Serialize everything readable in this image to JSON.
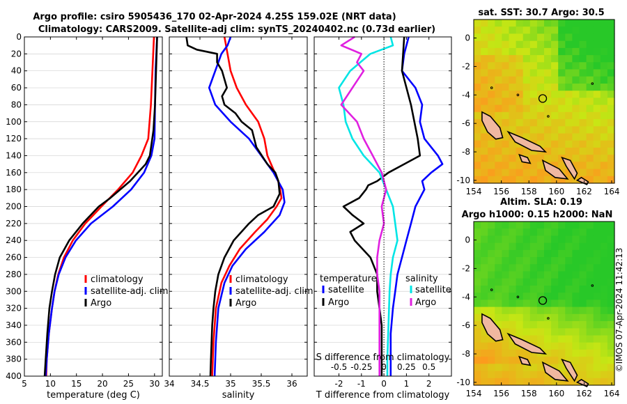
{
  "chart_data": {
    "type": "line",
    "title_line1": "Argo profile: csiro 5905436_170 02-Apr-2024 4.25S 159.02E (NRT data)",
    "title_line2": "Climatology: CARS2009. Satellite-adj clim: synTS_20240402.nc (0.73d earlier)",
    "watermark": "©IMOS 07-Apr-2024 11:42:13",
    "colors": {
      "red": "#ff0000",
      "blue": "#0000ff",
      "black": "#000000",
      "cyan": "#00e5e5",
      "magenta": "#e020e0"
    },
    "depth_ticks": [
      "0",
      "20",
      "40",
      "60",
      "80",
      "100",
      "120",
      "140",
      "160",
      "180",
      "200",
      "220",
      "240",
      "260",
      "280",
      "300",
      "320",
      "340",
      "360",
      "380",
      "400"
    ],
    "panels": [
      {
        "id": "temperature",
        "xlabel": "temperature (deg C)",
        "xlim": [
          5,
          31.5
        ],
        "ylim": [
          0,
          400
        ],
        "xticks": [
          5,
          10,
          15,
          20,
          25,
          30
        ],
        "xtick_labels": [
          "5",
          "10",
          "15",
          "20",
          "25",
          "30"
        ],
        "legend": [
          "climatology",
          "satellite-adj. clim",
          "Argo"
        ],
        "series": [
          {
            "name": "climatology",
            "color": "red",
            "depth": [
              0,
              40,
              80,
              120,
              140,
              160,
              180,
              200,
              220,
              240,
              260,
              280,
              300,
              320,
              350,
              380,
              400
            ],
            "values": [
              29.9,
              29.6,
              29.3,
              28.8,
              27.5,
              25.8,
              23,
              19.8,
              16.7,
              14.3,
              12.6,
              11.5,
              10.8,
              10.3,
              9.7,
              9.3,
              9.2
            ]
          },
          {
            "name": "satellite-adj. clim",
            "color": "blue",
            "depth": [
              0,
              40,
              80,
              120,
              140,
              160,
              180,
              200,
              220,
              240,
              260,
              280,
              300,
              320,
              350,
              380,
              400
            ],
            "values": [
              30.5,
              30.2,
              30.1,
              30,
              29.4,
              28,
              25.5,
              22,
              17.8,
              14.9,
              12.9,
              11.6,
              10.8,
              10.3,
              9.7,
              9.3,
              9.1
            ]
          },
          {
            "name": "Argo",
            "color": "black",
            "depth": [
              0,
              40,
              80,
              110,
              140,
              150,
              170,
              190,
              200,
              220,
              240,
              260,
              280,
              300,
              320,
              350,
              380,
              400
            ],
            "values": [
              30.5,
              30.3,
              30.1,
              29.8,
              29.1,
              28.3,
              25.3,
              21.5,
              19.3,
              16.2,
              13.6,
              11.8,
              10.9,
              10.3,
              9.8,
              9.4,
              9.1,
              8.9
            ]
          }
        ]
      },
      {
        "id": "salinity",
        "xlabel": "salinity",
        "xlim": [
          34,
          36.25
        ],
        "ylim": [
          0,
          400
        ],
        "xticks": [
          34,
          34.5,
          35,
          35.5,
          36
        ],
        "xtick_labels": [
          "34",
          "34.5",
          "35",
          "35.5",
          "36"
        ],
        "legend": [
          "climatology",
          "satellite-adj. clim",
          "Argo"
        ],
        "series": [
          {
            "name": "climatology",
            "color": "red",
            "depth": [
              0,
              20,
              40,
              60,
              80,
              100,
              120,
              140,
              160,
              175,
              190,
              200,
              215,
              230,
              250,
              270,
              290,
              320,
              360,
              400
            ],
            "values": [
              34.9,
              34.95,
              35.0,
              35.1,
              35.25,
              35.45,
              35.55,
              35.6,
              35.72,
              35.8,
              35.83,
              35.75,
              35.6,
              35.4,
              35.15,
              34.98,
              34.85,
              34.76,
              34.72,
              34.7
            ]
          },
          {
            "name": "satellite-adj. clim",
            "color": "blue",
            "depth": [
              0,
              10,
              20,
              40,
              60,
              80,
              100,
              120,
              140,
              160,
              180,
              195,
              210,
              230,
              250,
              270,
              290,
              320,
              360,
              400
            ],
            "values": [
              35.0,
              34.95,
              34.85,
              34.75,
              34.65,
              34.75,
              35.0,
              35.3,
              35.5,
              35.7,
              35.85,
              35.88,
              35.8,
              35.55,
              35.25,
              35.03,
              34.9,
              34.8,
              34.76,
              34.74
            ]
          },
          {
            "name": "Argo",
            "color": "black",
            "depth": [
              0,
              10,
              15,
              20,
              30,
              40,
              50,
              60,
              70,
              80,
              90,
              100,
              110,
              130,
              150,
              160,
              170,
              185,
              200,
              210,
              220,
              240,
              260,
              280,
              300,
              320,
              340,
              360,
              380,
              400
            ],
            "values": [
              34.28,
              34.3,
              34.45,
              34.78,
              34.78,
              34.86,
              34.9,
              34.94,
              34.86,
              34.9,
              35.08,
              35.18,
              35.35,
              35.42,
              35.6,
              35.73,
              35.78,
              35.8,
              35.7,
              35.45,
              35.3,
              35.05,
              34.9,
              34.8,
              34.75,
              34.72,
              34.7,
              34.69,
              34.68,
              34.67
            ]
          }
        ]
      },
      {
        "id": "differences",
        "xlabel": "T difference from climatology",
        "xlabel_top": "S difference from climatology",
        "xlim": [
          -3.1,
          3.0
        ],
        "ylim": [
          0,
          400
        ],
        "xticks": [
          -2,
          -1,
          0,
          1,
          2
        ],
        "xtick_labels": [
          "-2",
          "-1",
          "0",
          "1",
          "2"
        ],
        "s_ticks": [
          -2,
          -1,
          0,
          1,
          2
        ],
        "s_tick_labels": [
          "-0.5",
          "-0.25",
          "0",
          "0.25",
          "0.5"
        ],
        "legend_left_title": "temperature",
        "legend_right_title": "salinity",
        "legend_left": [
          "satellite",
          "Argo"
        ],
        "legend_right": [
          "satellite",
          "Argo"
        ],
        "series": [
          {
            "name": "T satellite",
            "color": "blue",
            "depth": [
              0,
              20,
              40,
              60,
              80,
              100,
              120,
              140,
              150,
              160,
              170,
              180,
              200,
              220,
              240,
              260,
              280,
              300,
              320,
              350,
              380,
              400
            ],
            "values": [
              1.1,
              0.9,
              0.8,
              1.4,
              1.7,
              1.6,
              1.8,
              2.4,
              2.6,
              2.1,
              1.7,
              1.8,
              1.4,
              1.2,
              1.0,
              0.8,
              0.6,
              0.5,
              0.4,
              0.3,
              0.3,
              0.3
            ]
          },
          {
            "name": "T Argo",
            "color": "black",
            "depth": [
              0,
              40,
              80,
              120,
              140,
              150,
              160,
              170,
              175,
              180,
              190,
              200,
              210,
              220,
              230,
              240,
              260,
              280,
              300,
              320,
              340,
              360,
              380,
              400
            ],
            "values": [
              0.9,
              0.8,
              1.2,
              1.5,
              1.6,
              0.9,
              0.2,
              -0.3,
              -0.7,
              -0.8,
              -1.1,
              -1.8,
              -1.4,
              -0.9,
              -1.5,
              -1.3,
              -0.6,
              -0.3,
              -0.3,
              -0.2,
              -0.1,
              -0.1,
              -0.1,
              -0.1
            ]
          },
          {
            "name": "S satellite",
            "color": "cyan",
            "depth": [
              0,
              10,
              20,
              40,
              60,
              80,
              100,
              120,
              140,
              160,
              180,
              200,
              220,
              240,
              260,
              280,
              300,
              340,
              380,
              400
            ],
            "values": [
              0.3,
              0.4,
              -0.6,
              -1.5,
              -2.0,
              -1.8,
              -1.7,
              -1.4,
              -0.9,
              -0.2,
              0.1,
              0.4,
              0.5,
              0.6,
              0.4,
              0.3,
              0.25,
              0.2,
              0.15,
              0.15
            ]
          },
          {
            "name": "S Argo",
            "color": "magenta",
            "depth": [
              0,
              10,
              20,
              30,
              40,
              60,
              80,
              100,
              120,
              140,
              160,
              180,
              200,
              220,
              240,
              260,
              280,
              300,
              340,
              380,
              400
            ],
            "values": [
              -1.3,
              -1.9,
              -1.0,
              -1.2,
              -0.9,
              -1.4,
              -1.9,
              -1.2,
              -0.9,
              -0.5,
              -0.1,
              0.1,
              -0.1,
              0.0,
              -0.2,
              -0.3,
              -0.3,
              -0.2,
              -0.2,
              -0.2,
              -0.2
            ]
          }
        ]
      }
    ],
    "maps": [
      {
        "id": "sst_map",
        "title1": "sat. SST: 30.7 Argo: 30.5",
        "xlim": [
          154,
          164.2
        ],
        "ylim": [
          -10.2,
          1.3
        ],
        "xticks": [
          154,
          156,
          158,
          160,
          162,
          164
        ],
        "xtick_labels": [
          "154",
          "156",
          "158",
          "160",
          "162",
          "164"
        ],
        "yticks": [
          0,
          -2,
          -4,
          -6,
          -8,
          -10
        ],
        "ytick_labels": [
          "0",
          "-2",
          "-4",
          "-6",
          "-8",
          "-10"
        ],
        "marker": [
          159,
          -4.25
        ]
      },
      {
        "id": "sla_map",
        "title1": "Altim. SLA: 0.19",
        "title2": "Argo h1000: 0.15 h2000: NaN",
        "xlim": [
          154,
          164.2
        ],
        "ylim": [
          -10.2,
          1.3
        ],
        "xticks": [
          154,
          156,
          158,
          160,
          162,
          164
        ],
        "xtick_labels": [
          "154",
          "156",
          "158",
          "160",
          "162",
          "164"
        ],
        "yticks": [
          0,
          -2,
          -4,
          -6,
          -8,
          -10
        ],
        "ytick_labels": [
          "0",
          "-2",
          "-4",
          "-6",
          "-8",
          "-10"
        ],
        "marker": [
          159,
          -4.25
        ]
      }
    ]
  }
}
